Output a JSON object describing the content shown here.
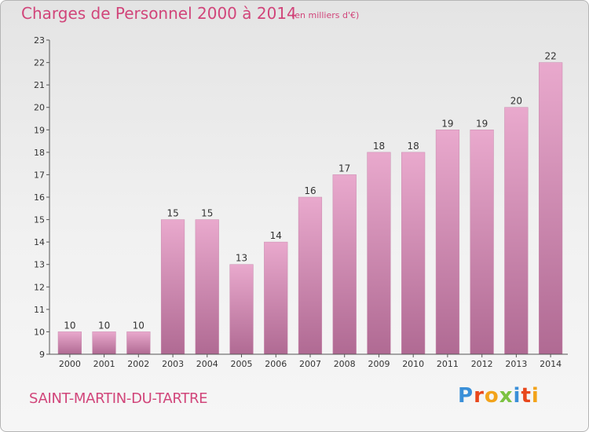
{
  "title": "Charges de Personnel 2000 à 2014",
  "subtitle": "(en milliers d'€)",
  "city": "SAINT-MARTIN-DU-TARTRE",
  "logo": {
    "letters": [
      "P",
      "r",
      "o",
      "x",
      "i",
      "t",
      "i"
    ],
    "colors": [
      "#3a8fd8",
      "#e8471c",
      "#f2a31b",
      "#7cc242",
      "#3a8fd8",
      "#e8471c",
      "#f2a31b"
    ]
  },
  "chart_data": {
    "type": "bar",
    "categories": [
      "2000",
      "2001",
      "2002",
      "2003",
      "2004",
      "2005",
      "2006",
      "2007",
      "2008",
      "2009",
      "2010",
      "2011",
      "2012",
      "2013",
      "2014"
    ],
    "values": [
      10,
      10,
      10,
      15,
      15,
      13,
      14,
      16,
      17,
      18,
      18,
      19,
      19,
      20,
      22
    ],
    "ylim": [
      9,
      23
    ],
    "yticks": [
      9,
      10,
      11,
      12,
      13,
      14,
      15,
      16,
      17,
      18,
      19,
      20,
      21,
      22,
      23
    ],
    "bar_color": "#d98bb7",
    "grid": false
  }
}
